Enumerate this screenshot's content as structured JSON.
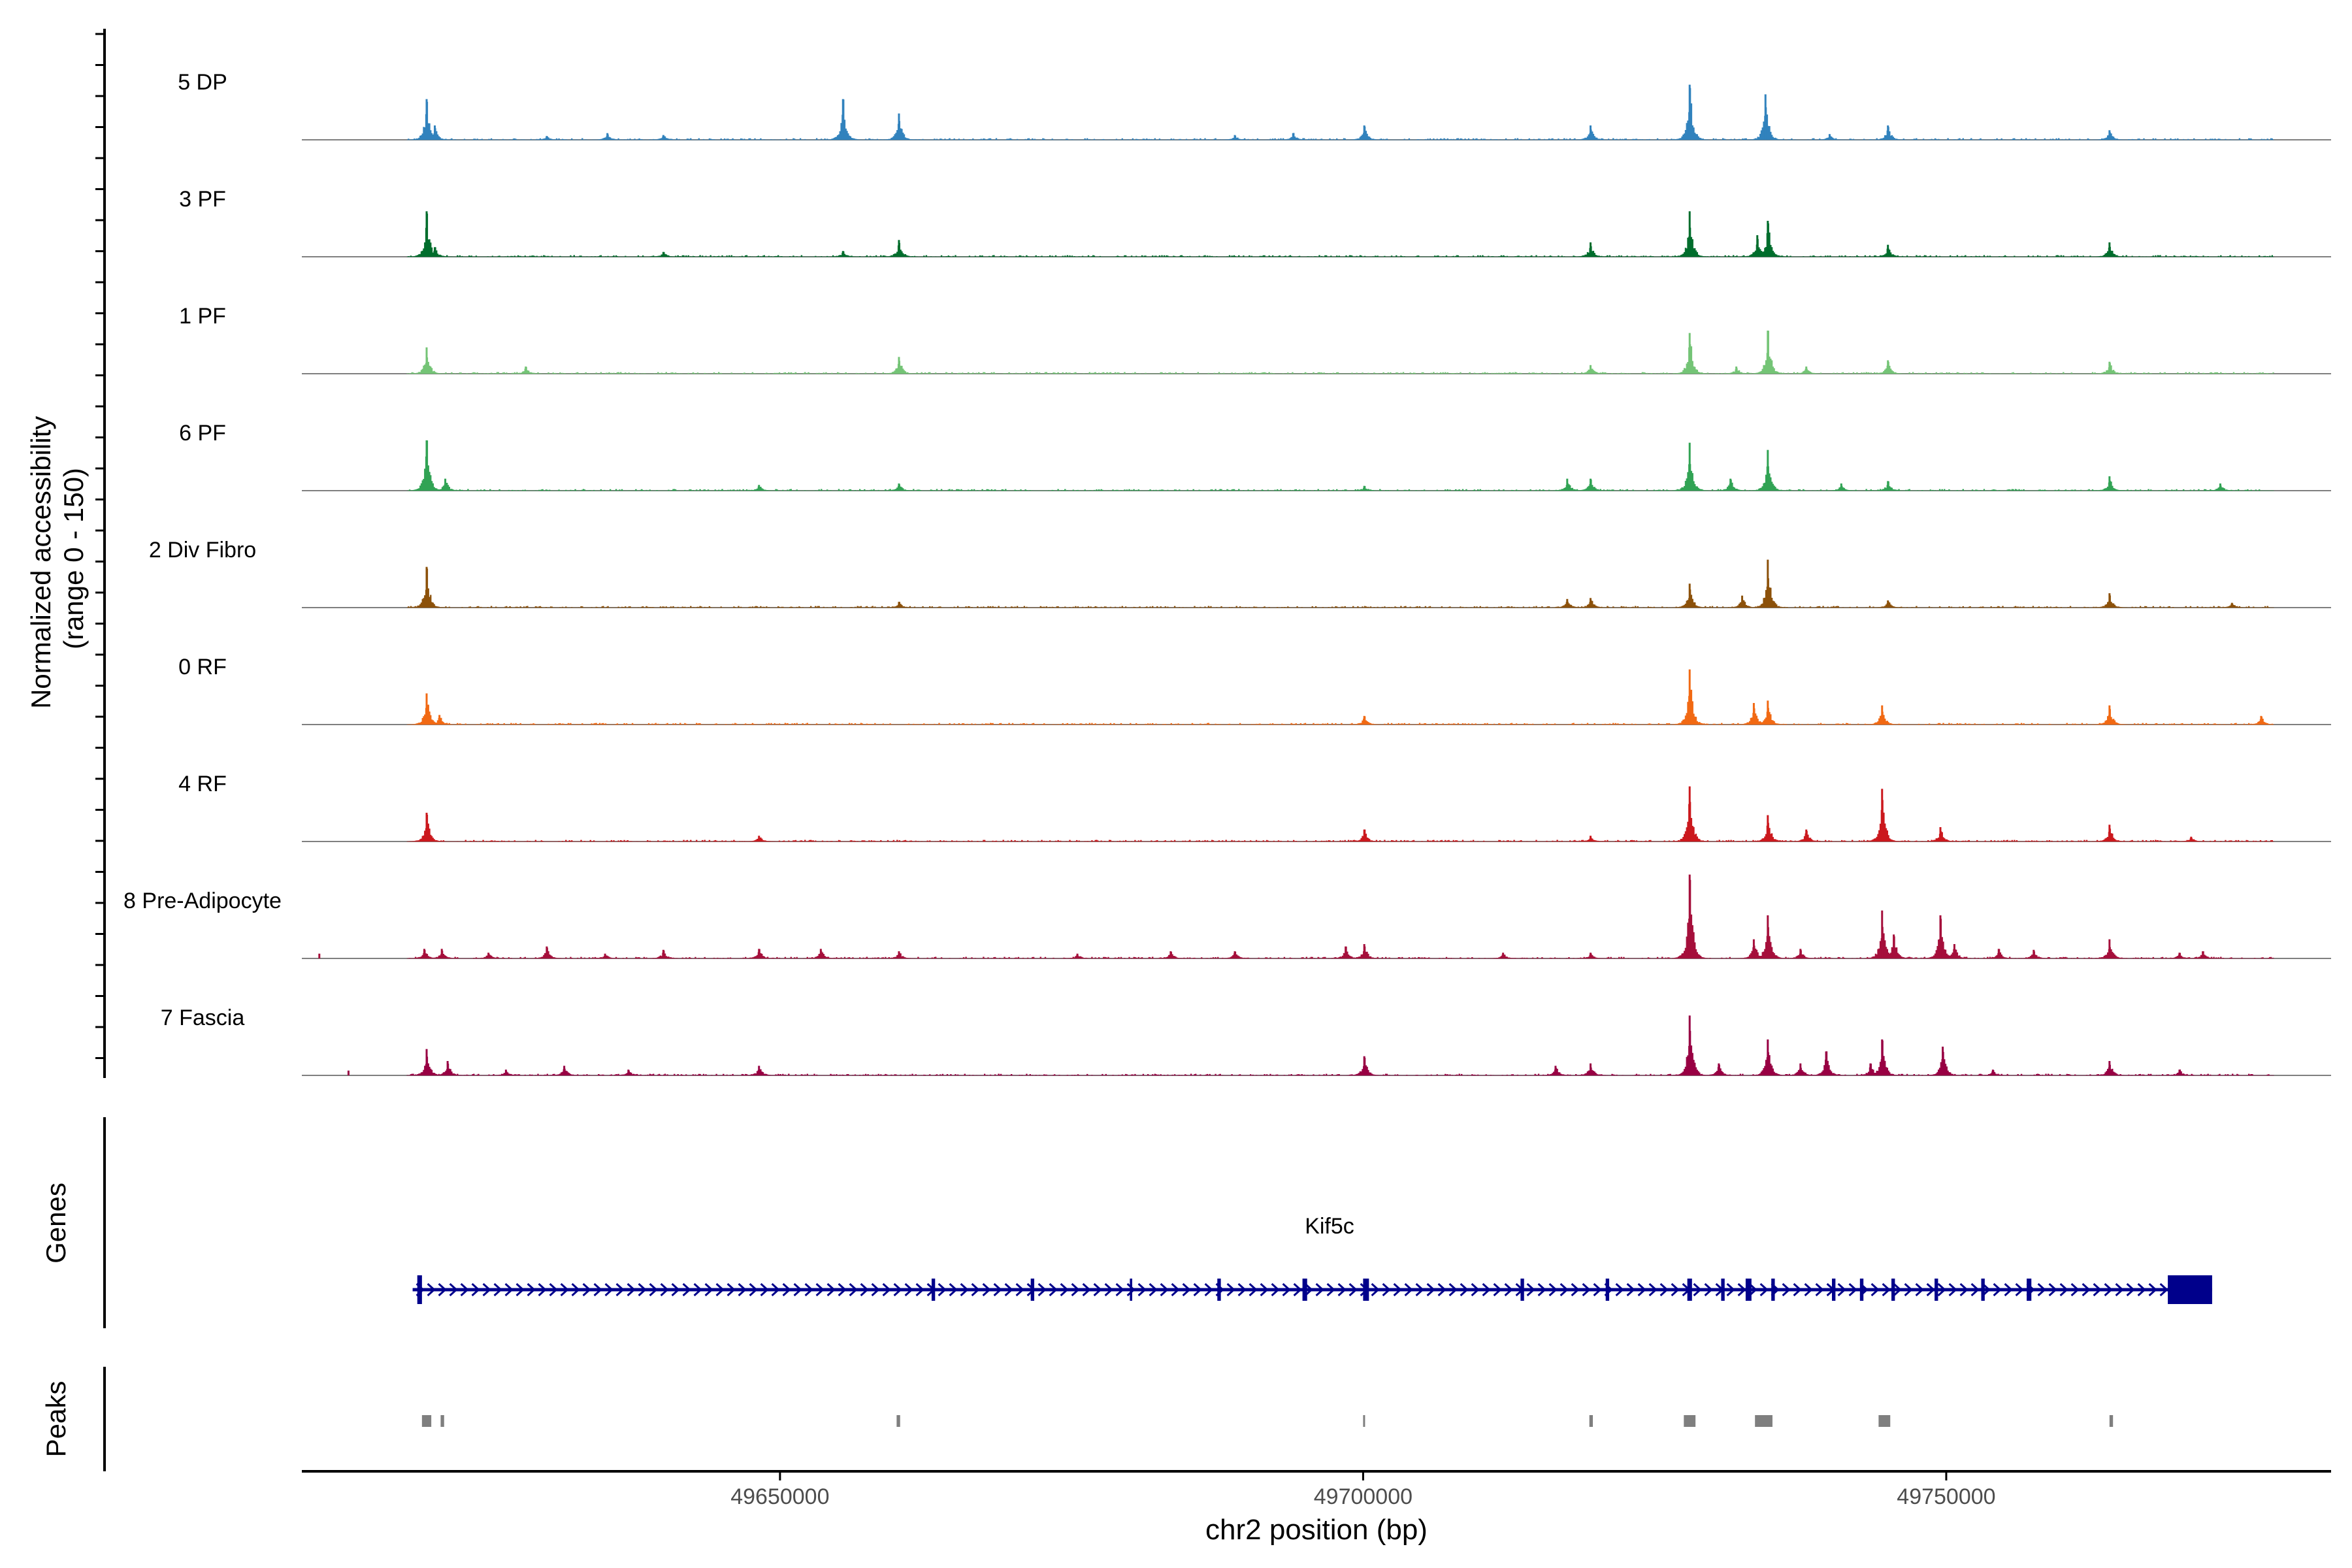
{
  "chart_data": {
    "type": "area",
    "title": "",
    "xlabel": "chr2 position (bp)",
    "ylabel": "Normalized accessibility\n(range 0 - 150)",
    "ylim": [
      0,
      150
    ],
    "xlim": [
      49609000,
      49783000
    ],
    "x_ticks": [
      49650000,
      49700000,
      49750000
    ],
    "x_tick_labels": [
      "49650000",
      "49700000",
      "49750000"
    ],
    "track_range": [
      49618000,
      49778000
    ],
    "peak_width_bp": 260,
    "tracks": [
      {
        "name": "5 DP",
        "color": "#3182bd",
        "peaks": [
          [
            49619700,
            85
          ],
          [
            49620400,
            30
          ],
          [
            49630000,
            8
          ],
          [
            49635200,
            14
          ],
          [
            49640000,
            10
          ],
          [
            49655400,
            85
          ],
          [
            49660200,
            55
          ],
          [
            49689000,
            10
          ],
          [
            49694000,
            14
          ],
          [
            49700100,
            30
          ],
          [
            49719500,
            30
          ],
          [
            49728000,
            115
          ],
          [
            49734500,
            95
          ],
          [
            49740000,
            12
          ],
          [
            49745000,
            30
          ],
          [
            49764000,
            20
          ]
        ]
      },
      {
        "name": "3 PF",
        "color": "#006d2c",
        "peaks": [
          [
            49619700,
            95
          ],
          [
            49620400,
            20
          ],
          [
            49640000,
            10
          ],
          [
            49655400,
            12
          ],
          [
            49660200,
            35
          ],
          [
            49719500,
            30
          ],
          [
            49728000,
            95
          ],
          [
            49733800,
            45
          ],
          [
            49734700,
            75
          ],
          [
            49745000,
            25
          ],
          [
            49764000,
            30
          ]
        ]
      },
      {
        "name": "1 PF",
        "color": "#74c476",
        "peaks": [
          [
            49619700,
            55
          ],
          [
            49628200,
            15
          ],
          [
            49660200,
            35
          ],
          [
            49719500,
            18
          ],
          [
            49728000,
            85
          ],
          [
            49732000,
            15
          ],
          [
            49734700,
            90
          ],
          [
            49738000,
            15
          ],
          [
            49745000,
            28
          ],
          [
            49764000,
            25
          ]
        ]
      },
      {
        "name": "6 PF",
        "color": "#31a354",
        "peaks": [
          [
            49619700,
            105
          ],
          [
            49621300,
            25
          ],
          [
            49648200,
            12
          ],
          [
            49660200,
            15
          ],
          [
            49700100,
            10
          ],
          [
            49717500,
            25
          ],
          [
            49719500,
            25
          ],
          [
            49728000,
            100
          ],
          [
            49731500,
            25
          ],
          [
            49734700,
            85
          ],
          [
            49741000,
            15
          ],
          [
            49745000,
            20
          ],
          [
            49764000,
            30
          ],
          [
            49773500,
            15
          ]
        ]
      },
      {
        "name": "2 Div Fibro",
        "color": "#8c510a",
        "peaks": [
          [
            49619700,
            85
          ],
          [
            49660200,
            12
          ],
          [
            49717500,
            18
          ],
          [
            49719500,
            20
          ],
          [
            49728000,
            50
          ],
          [
            49732500,
            25
          ],
          [
            49734700,
            100
          ],
          [
            49745000,
            15
          ],
          [
            49764000,
            30
          ],
          [
            49774500,
            10
          ]
        ]
      },
      {
        "name": "0 RF",
        "color": "#f16913",
        "peaks": [
          [
            49619700,
            65
          ],
          [
            49620800,
            20
          ],
          [
            49700100,
            18
          ],
          [
            49728000,
            115
          ],
          [
            49733500,
            45
          ],
          [
            49734700,
            50
          ],
          [
            49744500,
            40
          ],
          [
            49764000,
            40
          ],
          [
            49777000,
            18
          ]
        ]
      },
      {
        "name": "4 RF",
        "color": "#cb181d",
        "peaks": [
          [
            49619700,
            60
          ],
          [
            49648200,
            12
          ],
          [
            49700100,
            25
          ],
          [
            49719500,
            12
          ],
          [
            49728000,
            115
          ],
          [
            49734700,
            55
          ],
          [
            49738000,
            25
          ],
          [
            49744500,
            110
          ],
          [
            49749500,
            30
          ],
          [
            49764000,
            35
          ],
          [
            49771000,
            10
          ]
        ]
      },
      {
        "name": "8 Pre-Adipocyte",
        "color": "#a50f3b",
        "peaks": [
          [
            49610500,
            10
          ],
          [
            49619500,
            20
          ],
          [
            49621000,
            20
          ],
          [
            49625000,
            12
          ],
          [
            49630000,
            25
          ],
          [
            49635000,
            10
          ],
          [
            49640000,
            18
          ],
          [
            49648200,
            20
          ],
          [
            49653500,
            20
          ],
          [
            49660200,
            15
          ],
          [
            49675500,
            10
          ],
          [
            49683500,
            15
          ],
          [
            49689000,
            15
          ],
          [
            49698500,
            25
          ],
          [
            49700100,
            30
          ],
          [
            49712000,
            12
          ],
          [
            49719500,
            12
          ],
          [
            49728000,
            175
          ],
          [
            49733500,
            40
          ],
          [
            49734700,
            90
          ],
          [
            49737500,
            20
          ],
          [
            49744500,
            100
          ],
          [
            49745500,
            50
          ],
          [
            49749500,
            90
          ],
          [
            49750700,
            30
          ],
          [
            49754500,
            20
          ],
          [
            49757500,
            18
          ],
          [
            49764000,
            40
          ],
          [
            49770000,
            12
          ],
          [
            49772000,
            15
          ]
        ]
      },
      {
        "name": "7 Fascia",
        "color": "#980043",
        "peaks": [
          [
            49613000,
            10
          ],
          [
            49619700,
            55
          ],
          [
            49621500,
            30
          ],
          [
            49626500,
            12
          ],
          [
            49631500,
            20
          ],
          [
            49637000,
            12
          ],
          [
            49648200,
            20
          ],
          [
            49700100,
            40
          ],
          [
            49716500,
            20
          ],
          [
            49719500,
            25
          ],
          [
            49728000,
            125
          ],
          [
            49730500,
            25
          ],
          [
            49734700,
            75
          ],
          [
            49737500,
            25
          ],
          [
            49739700,
            50
          ],
          [
            49743500,
            25
          ],
          [
            49744500,
            75
          ],
          [
            49749700,
            60
          ],
          [
            49754000,
            12
          ],
          [
            49764000,
            30
          ],
          [
            49770000,
            12
          ]
        ]
      }
    ],
    "gene": {
      "name": "Kif5c",
      "strand": "+",
      "start": 49618500,
      "end": 49772800,
      "color": "#00008b",
      "exons": [
        [
          49618900,
          49619300
        ],
        [
          49663000,
          49663300
        ],
        [
          49671500,
          49671800
        ],
        [
          49680000,
          49680200
        ],
        [
          49687500,
          49687800
        ],
        [
          49694800,
          49695200
        ],
        [
          49700000,
          49700500
        ],
        [
          49713500,
          49713800
        ],
        [
          49720800,
          49721100
        ],
        [
          49727800,
          49728200
        ],
        [
          49730700,
          49731000
        ],
        [
          49732800,
          49733300
        ],
        [
          49735000,
          49735300
        ],
        [
          49740200,
          49740500
        ],
        [
          49742600,
          49742900
        ],
        [
          49745300,
          49745600
        ],
        [
          49749000,
          49749300
        ],
        [
          49753000,
          49753300
        ],
        [
          49756900,
          49757300
        ],
        [
          49769000,
          49772800
        ]
      ]
    },
    "peaks_track": {
      "label": "Peaks",
      "regions": [
        [
          49619300,
          49620100
        ],
        [
          49620900,
          49621200
        ],
        [
          49660000,
          49660300
        ],
        [
          49700000,
          49700100
        ],
        [
          49719400,
          49719700
        ],
        [
          49727500,
          49728500
        ],
        [
          49733600,
          49735100
        ],
        [
          49744200,
          49745200
        ],
        [
          49764000,
          49764300
        ]
      ]
    },
    "panel_labels": {
      "genes": "Genes",
      "peaks": "Peaks"
    }
  }
}
